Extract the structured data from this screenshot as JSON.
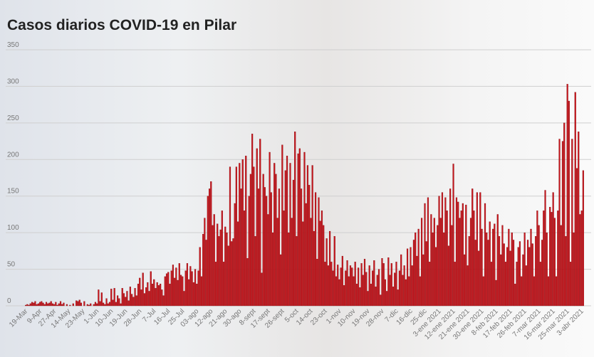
{
  "chart_data": {
    "type": "bar",
    "title": "Casos diarios COVID-19 en Pilar",
    "categories": [
      "19-Mar",
      null,
      null,
      null,
      null,
      null,
      null,
      null,
      null,
      "9-Apr",
      null,
      null,
      null,
      null,
      null,
      null,
      null,
      null,
      "27-Apr",
      null,
      null,
      null,
      null,
      null,
      null,
      null,
      null,
      "14-May",
      null,
      null,
      null,
      null,
      null,
      null,
      null,
      null,
      "23-May",
      null,
      null,
      null,
      null,
      null,
      null,
      null,
      null,
      "1-Jun",
      null,
      null,
      null,
      null,
      null,
      null,
      null,
      null,
      "10-Jun",
      null,
      null,
      null,
      null,
      null,
      null,
      null,
      null,
      "19-Jun",
      null,
      null,
      null,
      null,
      null,
      null,
      null,
      null,
      "28-Jun",
      null,
      null,
      null,
      null,
      null,
      null,
      null,
      null,
      "7-Jul",
      null,
      null,
      null,
      null,
      null,
      null,
      null,
      null,
      "16-Jul",
      null,
      null,
      null,
      null,
      null,
      null,
      null,
      null,
      "25-Jul",
      null,
      null,
      null,
      null,
      null,
      null,
      null,
      null,
      "03-ago",
      null,
      null,
      null,
      null,
      null,
      null,
      null,
      null,
      "12-ago",
      null,
      null,
      null,
      null,
      null,
      null,
      null,
      null,
      "21-ago",
      null,
      null,
      null,
      null,
      null,
      null,
      null,
      null,
      "30-ago",
      null,
      null,
      null,
      null,
      null,
      null,
      null,
      null,
      "8-sept",
      null,
      null,
      null,
      null,
      null,
      null,
      null,
      null,
      "17-sept",
      null,
      null,
      null,
      null,
      null,
      null,
      null,
      null,
      "26-sept",
      null,
      null,
      null,
      null,
      null,
      null,
      null,
      null,
      "5-oct",
      null,
      null,
      null,
      null,
      null,
      null,
      null,
      null,
      "14-oct",
      null,
      null,
      null,
      null,
      null,
      null,
      null,
      null,
      "23-oct",
      null,
      null,
      null,
      null,
      null,
      null,
      null,
      null,
      "1-nov",
      null,
      null,
      null,
      null,
      null,
      null,
      null,
      null,
      "10-nov",
      null,
      null,
      null,
      null,
      null,
      null,
      null,
      null,
      "19-nov",
      null,
      null,
      null,
      null,
      null,
      null,
      null,
      null,
      "28-nov",
      null,
      null,
      null,
      null,
      null,
      null,
      null,
      null,
      "7-dic",
      null,
      null,
      null,
      null,
      null,
      null,
      null,
      null,
      "16-dic",
      null,
      null,
      null,
      null,
      null,
      null,
      null,
      null,
      "25-dic",
      null,
      null,
      null,
      null,
      null,
      null,
      null,
      null,
      "3-ene 2021",
      null,
      null,
      null,
      null,
      null,
      null,
      null,
      null,
      "12-ene 2021",
      null,
      null,
      null,
      null,
      null,
      null,
      null,
      null,
      "21-ene 2021",
      null,
      null,
      null,
      null,
      null,
      null,
      null,
      null,
      "30-ene 2021",
      null,
      null,
      null,
      null,
      null,
      null,
      null,
      null,
      "8-feb 2021",
      null,
      null,
      null,
      null,
      null,
      null,
      null,
      null,
      "17-feb 2021",
      null,
      null,
      null,
      null,
      null,
      null,
      null,
      null,
      "26-feb 2021",
      null,
      null,
      null,
      null,
      null,
      null,
      null,
      null,
      "7-mar 2021",
      null,
      null,
      null,
      null,
      null,
      null,
      null,
      null,
      "16-mar 2021",
      null,
      null,
      null,
      null,
      null,
      null,
      null,
      null,
      "25-mar 2021",
      null,
      null,
      null,
      null,
      null,
      null,
      null,
      null,
      "3-abr 2021",
      null
    ],
    "values": [
      1,
      2,
      1,
      3,
      5,
      4,
      6,
      2,
      3,
      5,
      6,
      4,
      2,
      5,
      3,
      4,
      6,
      3,
      2,
      5,
      1,
      3,
      6,
      2,
      4,
      0,
      2,
      0,
      1,
      0,
      3,
      0,
      7,
      6,
      8,
      4,
      0,
      6,
      0,
      2,
      1,
      3,
      0,
      2,
      5,
      3,
      22,
      6,
      18,
      4,
      2,
      10,
      3,
      5,
      23,
      8,
      24,
      5,
      14,
      10,
      3,
      24,
      17,
      12,
      20,
      7,
      26,
      16,
      12,
      24,
      14,
      30,
      38,
      22,
      45,
      17,
      25,
      32,
      20,
      47,
      30,
      36,
      24,
      32,
      28,
      30,
      22,
      14,
      40,
      44,
      46,
      30,
      48,
      56,
      38,
      52,
      35,
      58,
      42,
      40,
      20,
      48,
      58,
      36,
      54,
      47,
      32,
      50,
      30,
      48,
      80,
      40,
      98,
      120,
      90,
      150,
      160,
      170,
      110,
      125,
      60,
      112,
      95,
      104,
      130,
      60,
      108,
      100,
      82,
      190,
      88,
      92,
      140,
      190,
      115,
      195,
      160,
      200,
      130,
      205,
      65,
      150,
      180,
      235,
      190,
      95,
      215,
      160,
      228,
      45,
      180,
      162,
      150,
      125,
      210,
      155,
      100,
      195,
      180,
      120,
      160,
      70,
      220,
      130,
      185,
      205,
      100,
      195,
      120,
      172,
      238,
      95,
      208,
      215,
      160,
      115,
      210,
      140,
      192,
      165,
      120,
      192,
      102,
      155,
      64,
      148,
      116,
      130,
      110,
      60,
      92,
      55,
      102,
      60,
      48,
      95,
      40,
      56,
      36,
      52,
      68,
      28,
      48,
      62,
      40,
      55,
      52,
      40,
      60,
      30,
      52,
      25,
      58,
      42,
      64,
      46,
      20,
      55,
      30,
      48,
      62,
      26,
      42,
      50,
      15,
      65,
      58,
      36,
      20,
      66,
      42,
      58,
      26,
      45,
      60,
      22,
      48,
      70,
      42,
      55,
      36,
      78,
      40,
      80,
      55,
      90,
      100,
      68,
      105,
      40,
      120,
      70,
      140,
      88,
      148,
      60,
      125,
      100,
      120,
      80,
      110,
      150,
      120,
      155,
      100,
      148,
      130,
      82,
      160,
      110,
      194,
      60,
      148,
      142,
      120,
      130,
      140,
      70,
      138,
      55,
      95,
      120,
      160,
      130,
      90,
      155,
      75,
      155,
      105,
      40,
      140,
      100,
      90,
      115,
      60,
      105,
      112,
      35,
      125,
      95,
      70,
      110,
      85,
      60,
      80,
      105,
      75,
      100,
      90,
      30,
      60,
      80,
      88,
      40,
      70,
      100,
      55,
      90,
      80,
      105,
      85,
      40,
      95,
      130,
      110,
      60,
      90,
      130,
      158,
      100,
      40,
      135,
      128,
      155,
      120,
      40,
      130,
      228,
      110,
      225,
      250,
      95,
      303,
      280,
      60,
      228,
      100,
      292,
      188,
      238,
      125,
      130,
      185
    ],
    "color": "#c8161d",
    "ylim": [
      0,
      350
    ],
    "yticks": [
      0,
      50,
      100,
      150,
      200,
      250,
      300,
      350
    ],
    "grid": true
  }
}
